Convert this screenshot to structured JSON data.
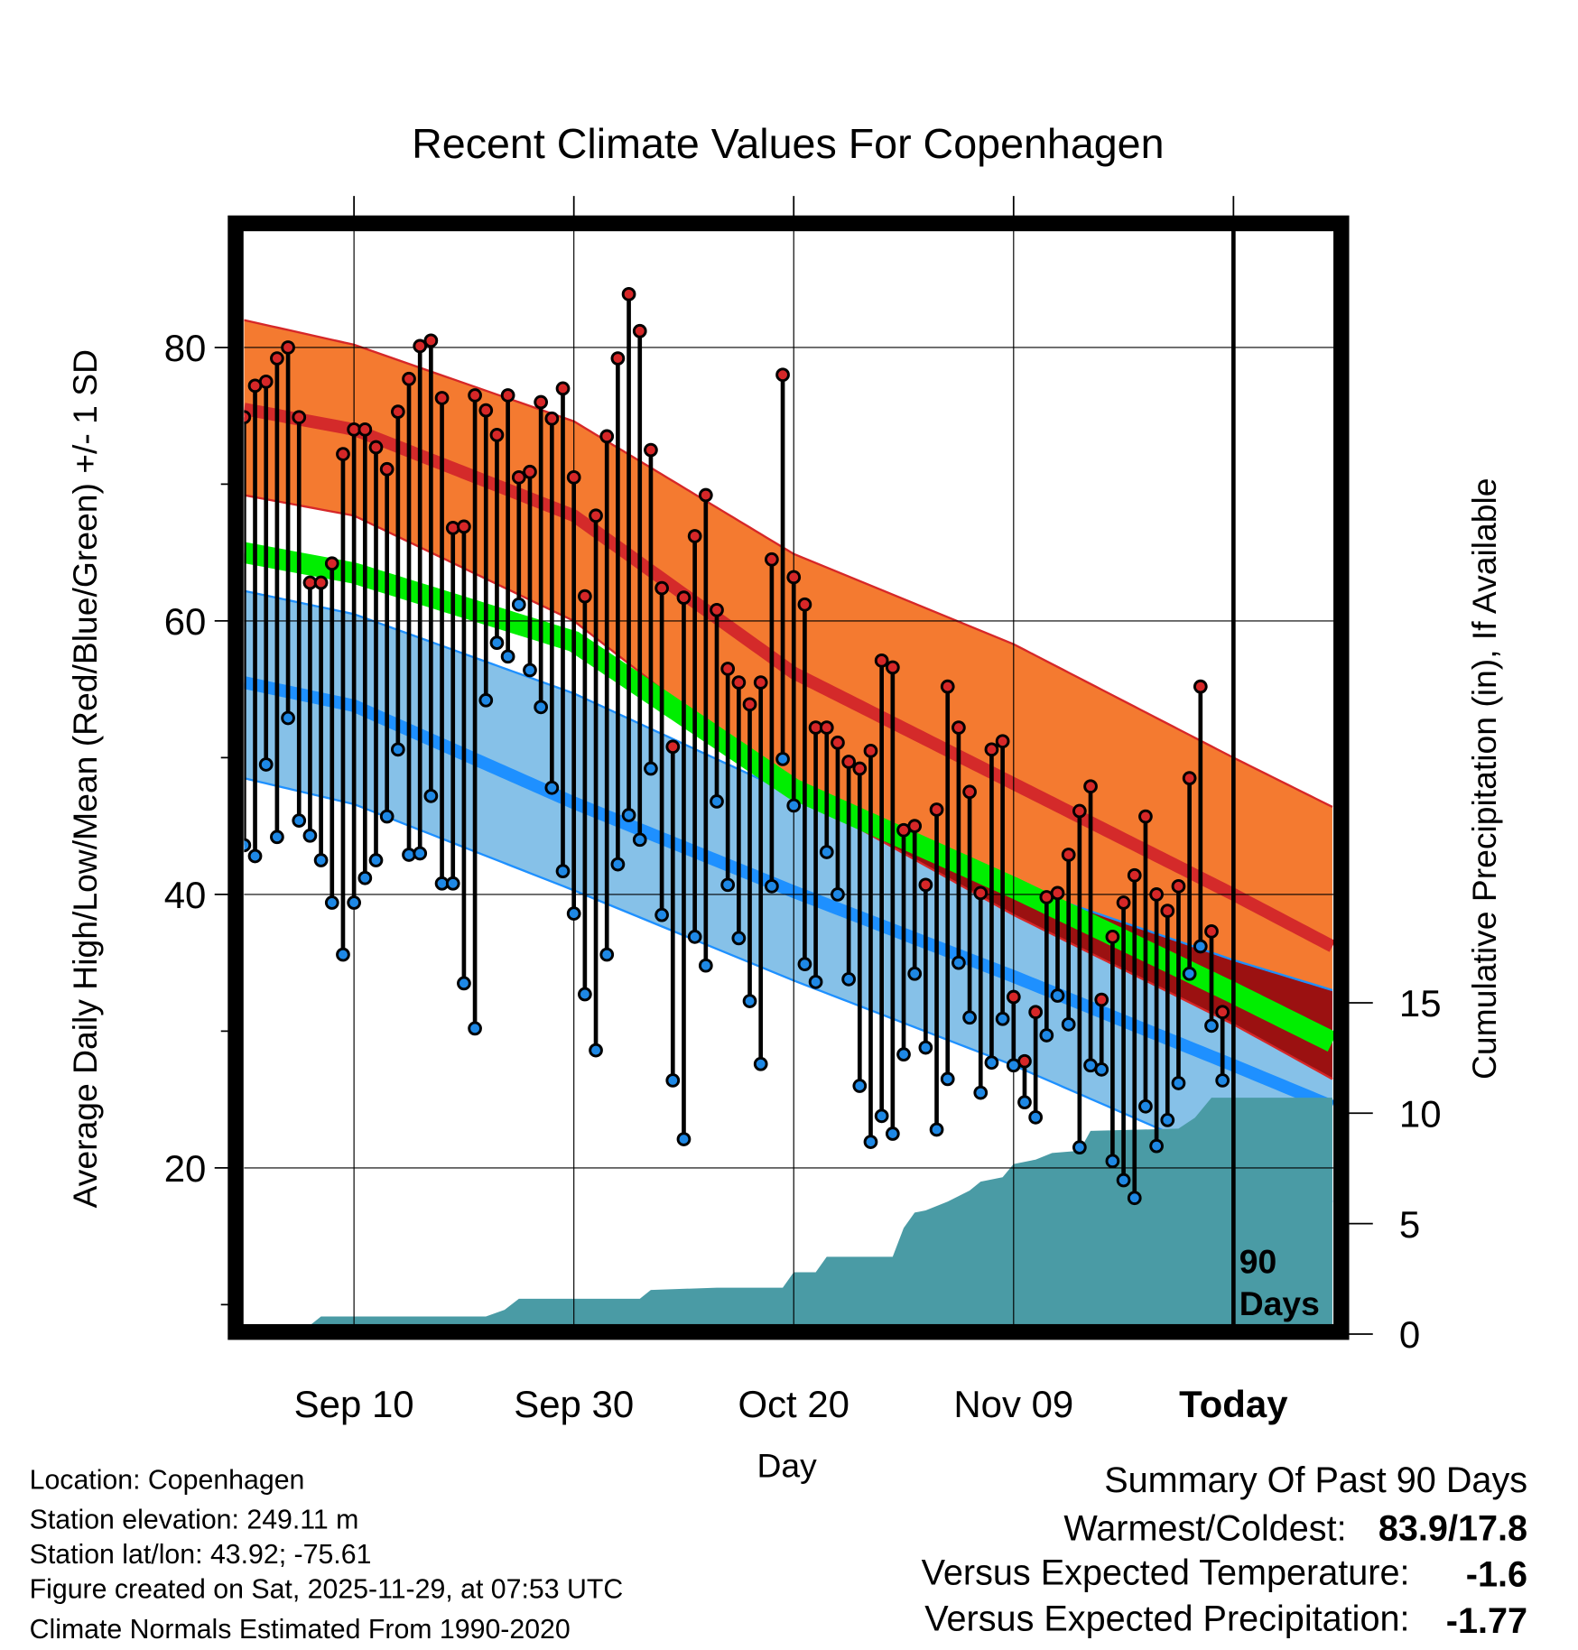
{
  "chart_data": {
    "type": "line",
    "title": "Recent Climate Values For Copenhagen",
    "xlabel": "Day",
    "ylabel": "Average Daily High/Low/Mean (Red/Blue/Green) +/- 1 SD",
    "y2label": "Cumulative Precipitation (in), If Available",
    "ylim": [
      8.5,
      88.6
    ],
    "y2lim": [
      -0.4,
      49
    ],
    "xlim": [
      0,
      99
    ],
    "grid": true,
    "x_ticks": [
      {
        "day": 10,
        "label": "Sep 10"
      },
      {
        "day": 30,
        "label": "Sep 30"
      },
      {
        "day": 50,
        "label": "Oct 20"
      },
      {
        "day": 70,
        "label": "Nov 09"
      },
      {
        "day": 90,
        "label": "Today"
      }
    ],
    "y_ticks": [
      {
        "value": 20,
        "label": "20"
      },
      {
        "value": 40,
        "label": "40"
      },
      {
        "value": 60,
        "label": "60"
      },
      {
        "value": 80,
        "label": "80"
      }
    ],
    "y_minor_ticks": [
      10,
      30,
      50,
      70
    ],
    "y2_ticks": [
      {
        "value": 0,
        "label": "0"
      },
      {
        "value": 5,
        "label": "5"
      },
      {
        "value": 10,
        "label": "10"
      },
      {
        "value": 15,
        "label": "15"
      }
    ],
    "today_marker": {
      "day": 90,
      "label_line1": "90",
      "label_line2": "Days"
    },
    "series": [
      {
        "name": "Daily High",
        "color": "#d62728",
        "values": [
          74.9,
          77.2,
          77.5,
          79.2,
          80.0,
          74.9,
          62.8,
          62.8,
          64.2,
          72.2,
          74.0,
          74.0,
          72.7,
          71.1,
          75.3,
          77.7,
          80.1,
          80.5,
          76.3,
          66.8,
          66.9,
          76.5,
          75.4,
          73.6,
          76.5,
          70.5,
          70.9,
          76.0,
          74.8,
          77.0,
          70.5,
          61.8,
          67.7,
          73.5,
          79.2,
          83.9,
          81.2,
          72.5,
          62.4,
          50.8,
          61.7,
          66.2,
          69.2,
          60.8,
          56.5,
          55.5,
          53.9,
          55.5,
          64.5,
          78.0,
          63.2,
          61.2,
          52.2,
          52.2,
          51.1,
          49.7,
          49.2,
          50.5,
          57.1,
          56.6,
          44.7,
          45.0,
          40.7,
          46.2,
          55.2,
          52.2,
          47.5,
          40.1,
          50.6,
          51.2,
          32.5,
          27.8,
          31.4,
          39.8,
          40.1,
          42.9,
          46.1,
          47.9,
          32.3,
          36.9,
          39.4,
          41.4,
          45.7,
          40.0,
          38.8,
          40.6,
          48.5,
          55.2,
          37.3,
          31.4
        ]
      },
      {
        "name": "Daily Low",
        "color": "#1e88e5",
        "values": [
          43.6,
          42.8,
          49.5,
          44.2,
          52.9,
          45.4,
          44.3,
          42.5,
          39.4,
          35.6,
          39.4,
          41.2,
          42.5,
          45.7,
          50.6,
          42.9,
          43.0,
          47.2,
          40.8,
          40.8,
          33.5,
          30.2,
          54.2,
          58.4,
          57.4,
          61.2,
          56.4,
          53.7,
          47.8,
          41.7,
          38.6,
          32.7,
          28.6,
          35.6,
          42.2,
          45.8,
          44.0,
          49.2,
          38.5,
          26.4,
          22.1,
          36.9,
          34.8,
          46.8,
          40.7,
          36.8,
          32.2,
          27.6,
          40.6,
          49.9,
          46.5,
          34.9,
          33.6,
          43.1,
          40.0,
          33.8,
          26.0,
          21.9,
          23.8,
          22.5,
          28.3,
          34.2,
          28.8,
          22.8,
          26.5,
          35.0,
          31.0,
          25.5,
          27.7,
          30.9,
          27.5,
          24.8,
          23.7,
          29.7,
          32.6,
          30.5,
          21.5,
          27.5,
          27.2,
          20.5,
          19.1,
          17.8,
          24.5,
          21.6,
          23.5,
          26.2,
          34.2,
          36.2,
          30.4,
          26.4
        ]
      },
      {
        "name": "Normal High +1 SD",
        "color": "#d62728",
        "days": [
          0,
          10,
          30,
          50,
          70,
          90,
          99
        ],
        "values": [
          82.0,
          80.2,
          74.6,
          64.9,
          58.3,
          50.0,
          46.4
        ]
      },
      {
        "name": "Normal High",
        "color": "#d62728",
        "days": [
          0,
          10,
          30,
          50,
          70,
          90,
          99
        ],
        "values": [
          75.5,
          74.0,
          67.7,
          56.2,
          48.1,
          40.0,
          36.2
        ]
      },
      {
        "name": "Normal High -1 SD",
        "color": "#d62728",
        "days": [
          0,
          10,
          30,
          50,
          70,
          90,
          99
        ],
        "values": [
          69.2,
          67.7,
          60.0,
          47.5,
          38.5,
          30.5,
          26.5
        ]
      },
      {
        "name": "Normal Mean",
        "color": "#00ee00",
        "days": [
          0,
          10,
          30,
          50,
          70,
          90,
          99
        ],
        "values": [
          65.0,
          63.5,
          58.5,
          47.7,
          40.5,
          32.8,
          29.2
        ]
      },
      {
        "name": "Normal Low +1 SD",
        "color": "#1e90ff",
        "days": [
          0,
          10,
          30,
          50,
          70,
          90,
          99
        ],
        "values": [
          62.2,
          60.5,
          54.7,
          47.3,
          40.7,
          35.2,
          33.0
        ]
      },
      {
        "name": "Normal Low",
        "color": "#1e90ff",
        "days": [
          0,
          10,
          30,
          50,
          70,
          90,
          99
        ],
        "values": [
          55.5,
          53.8,
          46.7,
          40.2,
          34.0,
          27.5,
          24.5
        ]
      },
      {
        "name": "Normal Low -1 SD",
        "color": "#1e90ff",
        "days": [
          0,
          10,
          30,
          50,
          70,
          90,
          99
        ],
        "values": [
          48.5,
          46.6,
          40.3,
          33.7,
          27.5,
          20.5,
          17.5
        ]
      },
      {
        "name": "Cumulative Precipitation",
        "color": "#4a9ba5",
        "axis": "y2",
        "days": [
          0,
          5,
          7,
          22,
          23.7,
          25,
          36,
          37,
          43,
          49,
          50,
          52,
          53,
          59,
          60,
          61,
          62,
          64,
          66,
          67,
          69,
          70,
          72,
          73.5,
          76,
          77,
          85,
          86.5,
          88,
          99
        ],
        "values": [
          0,
          0,
          0.8,
          0.8,
          1.1,
          1.6,
          1.6,
          2.0,
          2.1,
          2.1,
          2.8,
          2.8,
          3.5,
          3.5,
          4.8,
          5.5,
          5.6,
          6.0,
          6.5,
          6.9,
          7.1,
          7.7,
          7.9,
          8.2,
          8.3,
          9.2,
          9.3,
          9.8,
          10.7,
          10.7
        ]
      }
    ]
  },
  "footer": {
    "location": "Location: Copenhagen",
    "elevation": "Station elevation: 249.11 m",
    "latlon": "Station lat/lon: 43.92; -75.61",
    "created": "Figure created on Sat, 2025-11-29, at 07:53 UTC",
    "normals": "Climate Normals Estimated From 1990-2020"
  },
  "summary": {
    "heading": "Summary Of Past 90 Days",
    "warmest_label": "Warmest/Coldest:",
    "warmest_value": "83.9/17.8",
    "temp_label": "Versus Expected Temperature:",
    "temp_value": "-1.6",
    "temp_color": "#1e88e5",
    "precip_label": "Versus Expected Precipitation:",
    "precip_value": "-1.77",
    "precip_color": "#a0522d"
  }
}
